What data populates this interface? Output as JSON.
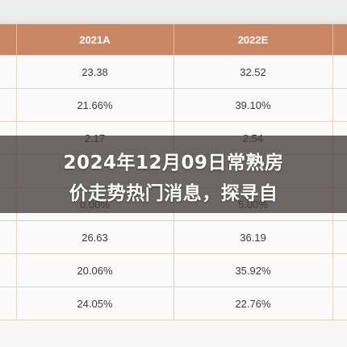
{
  "table": {
    "headers": [
      "",
      "2021A",
      "2022E",
      ""
    ],
    "rows": [
      [
        "",
        "23.38",
        "32.52",
        ""
      ],
      [
        "",
        "21.66%",
        "39.10%",
        ""
      ],
      [
        "",
        "2.17",
        "2.54",
        ""
      ],
      [
        "",
        "",
        "",
        ""
      ],
      [
        "",
        "0.00%",
        "5.00%",
        ""
      ],
      [
        "",
        "26.63",
        "36.19",
        ""
      ],
      [
        "",
        "20.06%",
        "35.92%",
        ""
      ],
      [
        "",
        "24.05%",
        "22.76%",
        ""
      ]
    ]
  },
  "banner": {
    "line1": "2024年12月09日常熟房",
    "line2": "价走势热门消息，探寻自"
  },
  "colors": {
    "header_bg": "#c98766",
    "overlay": "#443e3a"
  }
}
